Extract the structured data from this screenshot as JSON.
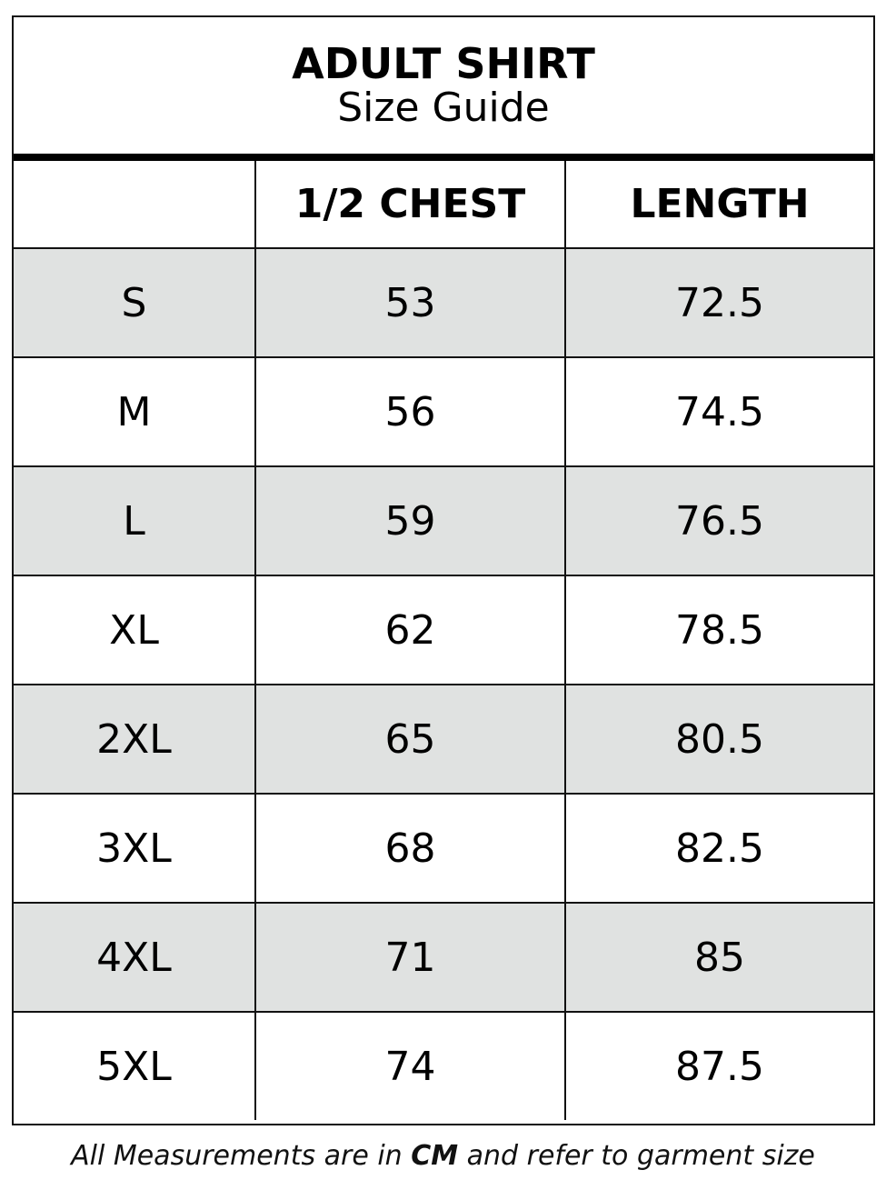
{
  "title": "ADULT SHIRT",
  "subtitle": "Size Guide",
  "headers": [
    "",
    "1/2 CHEST",
    "LENGTH"
  ],
  "rows": [
    [
      "S",
      "53",
      "72.5"
    ],
    [
      "M",
      "56",
      "74.5"
    ],
    [
      "L",
      "59",
      "76.5"
    ],
    [
      "XL",
      "62",
      "78.5"
    ],
    [
      "2XL",
      "65",
      "80.5"
    ],
    [
      "3XL",
      "68",
      "82.5"
    ],
    [
      "4XL",
      "71",
      "85"
    ],
    [
      "5XL",
      "74",
      "87.5"
    ]
  ],
  "footer": {
    "pre": "All Measurements are in ",
    "unit": "CM",
    "post": " and refer to garment size"
  },
  "colors": {
    "stripe": "#e0e2e1",
    "border": "#111111"
  }
}
